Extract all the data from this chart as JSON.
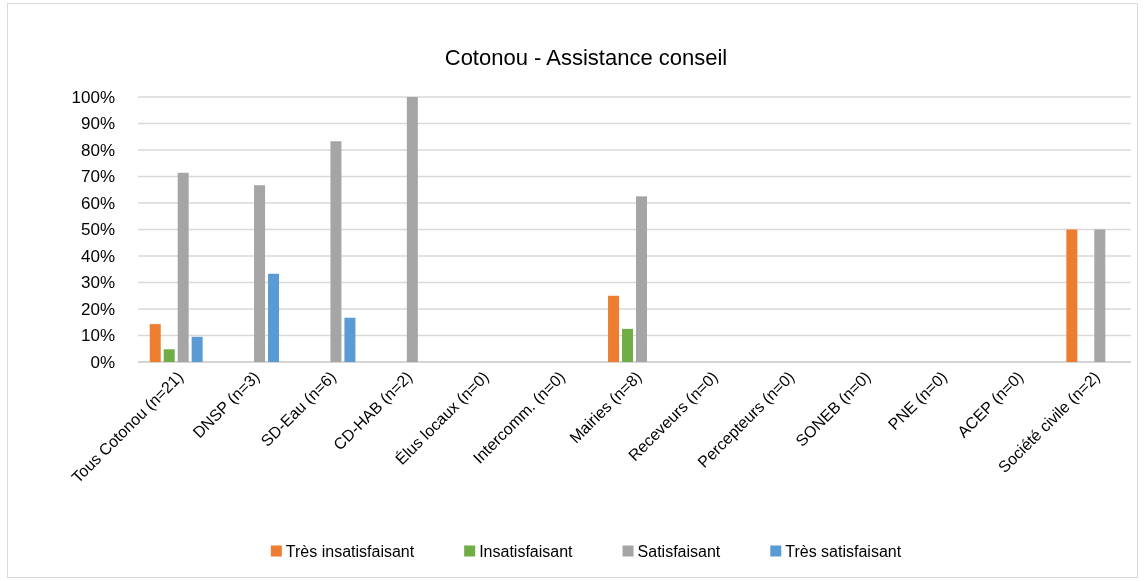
{
  "chart_data": {
    "type": "bar",
    "title": "Cotonou - Assistance conseil",
    "categories": [
      "Tous Cotonou (n=21)",
      "DNSP (n=3)",
      "SD-Eau (n=6)",
      "CD-HAB (n=2)",
      "Élus locaux (n=0)",
      "Intercomm. (n=0)",
      "Mairies (n=8)",
      "Receveurs (n=0)",
      "Percepteurs (n=0)",
      "SONEB (n=0)",
      "PNE (n=0)",
      "ACEP (n=0)",
      "Société civile (n=2)"
    ],
    "series": [
      {
        "name": "Très insatisfaisant",
        "color": "#ed7d31",
        "values": [
          14.3,
          0,
          0,
          0,
          0,
          0,
          25,
          0,
          0,
          0,
          0,
          0,
          50
        ]
      },
      {
        "name": "Insatisfaisant",
        "color": "#70ad47",
        "values": [
          4.8,
          0,
          0,
          0,
          0,
          0,
          12.5,
          0,
          0,
          0,
          0,
          0,
          0
        ]
      },
      {
        "name": "Satisfaisant",
        "color": "#a5a5a5",
        "values": [
          71.4,
          66.7,
          83.3,
          100,
          0,
          0,
          62.5,
          0,
          0,
          0,
          0,
          0,
          50
        ]
      },
      {
        "name": "Très satisfaisant",
        "color": "#5b9bd5",
        "values": [
          9.5,
          33.3,
          16.7,
          0,
          0,
          0,
          0,
          0,
          0,
          0,
          0,
          0,
          0
        ]
      }
    ],
    "ylim": [
      0,
      100
    ],
    "yticks": [
      {
        "value": 0,
        "label": "0%"
      },
      {
        "value": 10,
        "label": "10%"
      },
      {
        "value": 20,
        "label": "20%"
      },
      {
        "value": 30,
        "label": "30%"
      },
      {
        "value": 40,
        "label": "40%"
      },
      {
        "value": 50,
        "label": "50%"
      },
      {
        "value": 60,
        "label": "60%"
      },
      {
        "value": 70,
        "label": "70%"
      },
      {
        "value": 80,
        "label": "80%"
      },
      {
        "value": 90,
        "label": "90%"
      },
      {
        "value": 100,
        "label": "100%"
      }
    ],
    "grid": "y",
    "legend": "bottom"
  }
}
